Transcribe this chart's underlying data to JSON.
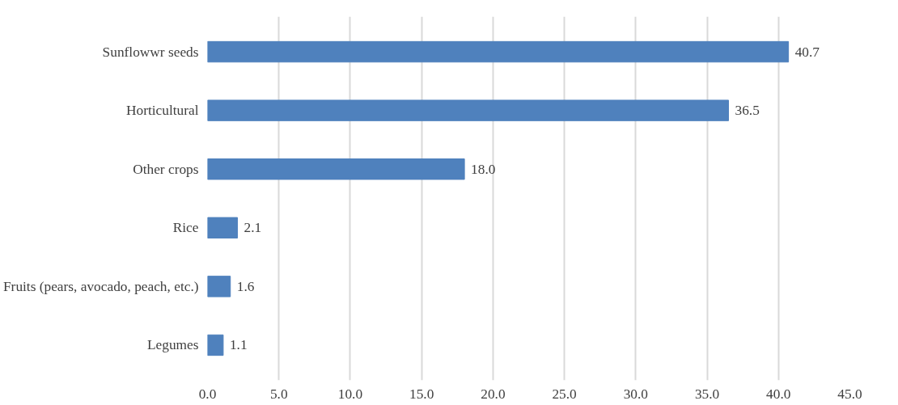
{
  "chart_data": {
    "type": "bar",
    "orientation": "horizontal",
    "categories": [
      "Sunflowwr seeds",
      "Horticultural",
      "Other crops",
      "Rice",
      "Fruits (pears, avocado, peach, etc.)",
      "Legumes"
    ],
    "values": [
      40.7,
      36.5,
      18.0,
      2.1,
      1.6,
      1.1
    ],
    "value_labels": [
      "40.7",
      "36.5",
      "18.0",
      "2.1",
      "1.6",
      "1.1"
    ],
    "color": "#4f81bd",
    "xlim": [
      0,
      45
    ],
    "xticks": [
      {
        "value": 0,
        "label": "0.0"
      },
      {
        "value": 5,
        "label": "5.0"
      },
      {
        "value": 10,
        "label": "10.0"
      },
      {
        "value": 15,
        "label": "15.0"
      },
      {
        "value": 20,
        "label": "20.0"
      },
      {
        "value": 25,
        "label": "25.0"
      },
      {
        "value": 30,
        "label": "30.0"
      },
      {
        "value": 35,
        "label": "35.0"
      },
      {
        "value": 40,
        "label": "40.0"
      },
      {
        "value": 45,
        "label": "45.0"
      }
    ],
    "grid": "x"
  }
}
